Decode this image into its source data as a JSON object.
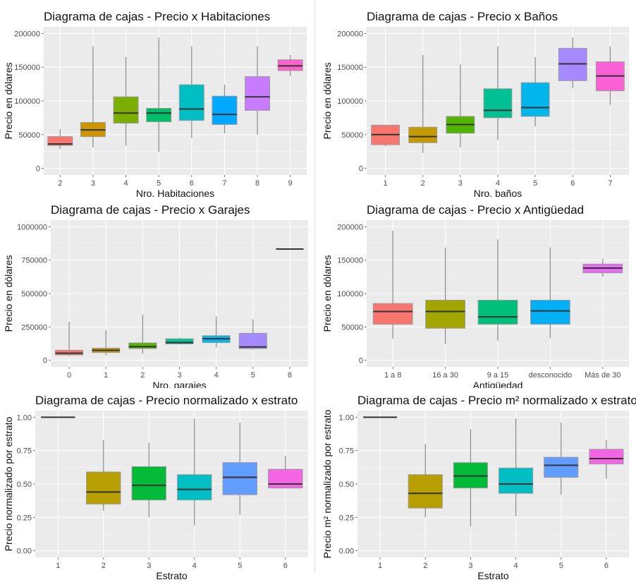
{
  "chart_data": [
    {
      "type": "boxplot",
      "title": "Diagrama de cajas - Precio x Habitaciones",
      "xlabel": "Nro. Habitaciones",
      "ylabel": "Precio en dólares",
      "ylim": [
        0,
        200000
      ],
      "yticks": [
        0,
        50000,
        100000,
        150000,
        200000
      ],
      "ytick_labels": [
        "0",
        "50000",
        "100000",
        "150000",
        "200000"
      ],
      "grid": true,
      "categories": [
        "2",
        "3",
        "4",
        "5",
        "6",
        "7",
        "8",
        "9"
      ],
      "colors": [
        "#F8766D",
        "#CD9600",
        "#7CAE00",
        "#00BE67",
        "#00BFC4",
        "#00A9FF",
        "#C77CFF",
        "#FF61CC"
      ],
      "boxes": [
        {
          "min": 29000,
          "q1": 34000,
          "median": 36000,
          "q3": 47000,
          "max": 58000
        },
        {
          "min": 31000,
          "q1": 47000,
          "median": 57000,
          "q3": 68000,
          "max": 181000
        },
        {
          "min": 34000,
          "q1": 67000,
          "median": 82000,
          "q3": 106000,
          "max": 165000
        },
        {
          "min": 24000,
          "q1": 69000,
          "median": 82000,
          "q3": 89000,
          "max": 194000
        },
        {
          "min": 45000,
          "q1": 71000,
          "median": 88000,
          "q3": 124000,
          "max": 181000
        },
        {
          "min": 52000,
          "q1": 65000,
          "median": 80000,
          "q3": 107000,
          "max": 124000
        },
        {
          "min": 50000,
          "q1": 86000,
          "median": 106000,
          "q3": 136000,
          "max": 181000
        },
        {
          "min": 137000,
          "q1": 145000,
          "median": 152000,
          "q3": 161000,
          "max": 168000
        }
      ]
    },
    {
      "type": "boxplot",
      "title": "Diagrama de cajas - Precio x Baños",
      "xlabel": "Nro. baños",
      "ylabel": "Precio en dólares",
      "ylim": [
        0,
        200000
      ],
      "yticks": [
        0,
        50000,
        100000,
        150000,
        200000
      ],
      "ytick_labels": [
        "0",
        "50000",
        "100000",
        "150000",
        "200000"
      ],
      "grid": true,
      "categories": [
        "1",
        "2",
        "3",
        "4",
        "5",
        "6",
        "7"
      ],
      "colors": [
        "#F8766D",
        "#C49A00",
        "#53B400",
        "#00C094",
        "#00B6EB",
        "#A58AFF",
        "#FB61D7"
      ],
      "boxes": [
        {
          "min": 33000,
          "q1": 35000,
          "median": 50000,
          "q3": 64000,
          "max": 64000
        },
        {
          "min": 23000,
          "q1": 38000,
          "median": 47000,
          "q3": 61000,
          "max": 168000
        },
        {
          "min": 31000,
          "q1": 52000,
          "median": 65000,
          "q3": 77000,
          "max": 154000
        },
        {
          "min": 42000,
          "q1": 75000,
          "median": 86000,
          "q3": 118000,
          "max": 181000
        },
        {
          "min": 62000,
          "q1": 77000,
          "median": 90000,
          "q3": 127000,
          "max": 165000
        },
        {
          "min": 119000,
          "q1": 130000,
          "median": 155000,
          "q3": 178000,
          "max": 194000
        },
        {
          "min": 94000,
          "q1": 115000,
          "median": 137000,
          "q3": 158000,
          "max": 181000
        }
      ]
    },
    {
      "type": "boxplot",
      "title": "Diagrama de cajas - Precio x Garajes",
      "xlabel": "Nro. garajes",
      "ylabel": "Precio en dólares",
      "ylim": [
        0,
        1000000
      ],
      "yticks": [
        0,
        250000,
        500000,
        750000,
        1000000
      ],
      "ytick_labels": [
        "0",
        "250000",
        "500000",
        "750000",
        "1000000"
      ],
      "grid": true,
      "categories": [
        "0",
        "1",
        "2",
        "3",
        "4",
        "5",
        "8"
      ],
      "colors": [
        "#F8766D",
        "#C49A00",
        "#53B400",
        "#00C094",
        "#00B6EB",
        "#A58AFF",
        "#FB61D7"
      ],
      "boxes": [
        {
          "min": 32000,
          "q1": 40000,
          "median": 53000,
          "q3": 75000,
          "max": 289000
        },
        {
          "min": 35000,
          "q1": 58000,
          "median": 75000,
          "q3": 91000,
          "max": 225000
        },
        {
          "min": 49000,
          "q1": 88000,
          "median": 102000,
          "q3": 130000,
          "max": 342000
        },
        {
          "min": 118000,
          "q1": 123000,
          "median": 132000,
          "q3": 161000,
          "max": 170000
        },
        {
          "min": 96000,
          "q1": 132000,
          "median": 161000,
          "q3": 184000,
          "max": 328000
        },
        {
          "min": 79000,
          "q1": 88000,
          "median": 100000,
          "q3": 202000,
          "max": 307000
        },
        {
          "min": 833000,
          "q1": 833000,
          "median": 833000,
          "q3": 833000,
          "max": 833000
        }
      ]
    },
    {
      "type": "boxplot",
      "title": "Diagrama de cajas - Precio x Antigüedad",
      "xlabel": "Antigüedad",
      "ylabel": "Precio en dólares",
      "ylim": [
        0,
        200000
      ],
      "yticks": [
        0,
        50000,
        100000,
        150000,
        200000
      ],
      "ytick_labels": [
        "0",
        "50000",
        "100000",
        "150000",
        "200000"
      ],
      "grid": true,
      "categories": [
        "1 a 8",
        "16 a 30",
        "9 a 15",
        "desconocido",
        "Más de 30"
      ],
      "colors": [
        "#F8766D",
        "#A3A500",
        "#00BF7D",
        "#00B0F6",
        "#E76BF3"
      ],
      "boxes": [
        {
          "min": 32000,
          "q1": 54000,
          "median": 73000,
          "q3": 85000,
          "max": 194000
        },
        {
          "min": 24000,
          "q1": 48000,
          "median": 73000,
          "q3": 90000,
          "max": 169000
        },
        {
          "min": 29000,
          "q1": 54000,
          "median": 65000,
          "q3": 90000,
          "max": 181000
        },
        {
          "min": 33000,
          "q1": 54000,
          "median": 74000,
          "q3": 90000,
          "max": 169000
        },
        {
          "min": 125000,
          "q1": 131000,
          "median": 138000,
          "q3": 144000,
          "max": 152000
        }
      ]
    },
    {
      "type": "boxplot",
      "title": "Diagrama de cajas - Precio normalizado x estrato",
      "xlabel": "Estrato",
      "ylabel": "Precio normalizado por estrato",
      "ylim": [
        0,
        1
      ],
      "yticks": [
        0,
        0.25,
        0.5,
        0.75,
        1
      ],
      "ytick_labels": [
        "0.00",
        "0.25",
        "0.50",
        "0.75",
        "1.00"
      ],
      "grid": true,
      "categories": [
        "1",
        "2",
        "3",
        "4",
        "5",
        "6"
      ],
      "colors": [
        "#F8766D",
        "#B79F00",
        "#00BA38",
        "#00BFC4",
        "#619CFF",
        "#F564E3"
      ],
      "boxes": [
        {
          "min": 1.0,
          "q1": 1.0,
          "median": 1.0,
          "q3": 1.0,
          "max": 1.0
        },
        {
          "min": 0.3,
          "q1": 0.35,
          "median": 0.44,
          "q3": 0.59,
          "max": 0.83
        },
        {
          "min": 0.25,
          "q1": 0.38,
          "median": 0.49,
          "q3": 0.63,
          "max": 0.81
        },
        {
          "min": 0.19,
          "q1": 0.38,
          "median": 0.46,
          "q3": 0.57,
          "max": 0.99
        },
        {
          "min": 0.27,
          "q1": 0.42,
          "median": 0.55,
          "q3": 0.66,
          "max": 0.96
        },
        {
          "min": 0.47,
          "q1": 0.47,
          "median": 0.5,
          "q3": 0.61,
          "max": 0.71
        }
      ]
    },
    {
      "type": "boxplot",
      "title": "Diagrama de cajas - Precio m² normalizado x estrato",
      "xlabel": "Estrato",
      "ylabel": "Precio m² normalizado por estrato",
      "ylim": [
        0,
        1
      ],
      "yticks": [
        0,
        0.25,
        0.5,
        0.75,
        1
      ],
      "ytick_labels": [
        "0.00",
        "0.25",
        "0.50",
        "0.75",
        "1.00"
      ],
      "grid": true,
      "categories": [
        "1",
        "2",
        "3",
        "4",
        "5",
        "6"
      ],
      "colors": [
        "#F8766D",
        "#B79F00",
        "#00BA38",
        "#00BFC4",
        "#619CFF",
        "#F564E3"
      ],
      "boxes": [
        {
          "min": 1.0,
          "q1": 1.0,
          "median": 1.0,
          "q3": 1.0,
          "max": 1.0
        },
        {
          "min": 0.25,
          "q1": 0.32,
          "median": 0.43,
          "q3": 0.57,
          "max": 0.8
        },
        {
          "min": 0.18,
          "q1": 0.47,
          "median": 0.56,
          "q3": 0.66,
          "max": 0.91
        },
        {
          "min": 0.26,
          "q1": 0.43,
          "median": 0.5,
          "q3": 0.62,
          "max": 0.99
        },
        {
          "min": 0.42,
          "q1": 0.55,
          "median": 0.64,
          "q3": 0.7,
          "max": 0.96
        },
        {
          "min": 0.54,
          "q1": 0.65,
          "median": 0.69,
          "q3": 0.76,
          "max": 0.83
        }
      ]
    }
  ]
}
